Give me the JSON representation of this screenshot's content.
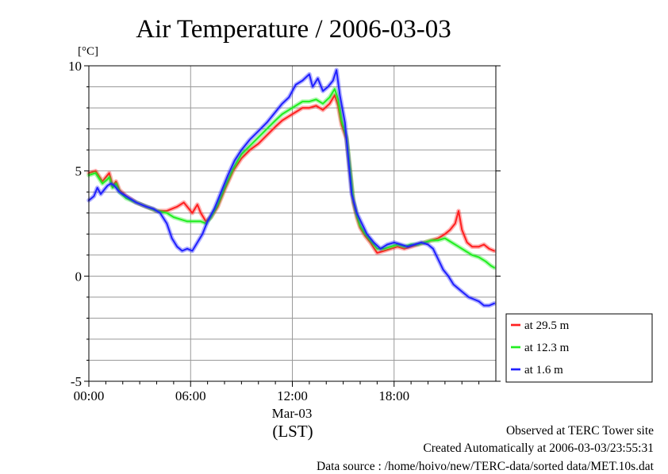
{
  "chart_data": {
    "type": "line",
    "title": "Air Temperature / 2006-03-03",
    "ylabel": "[°C]",
    "ylim": [
      -5,
      10
    ],
    "yticks": [
      -5,
      0,
      5,
      10
    ],
    "xlim": [
      0,
      24
    ],
    "xticks": [
      {
        "value": 0,
        "label": "00:00"
      },
      {
        "value": 6,
        "label": "06:00"
      },
      {
        "value": 12,
        "label": "12:00"
      },
      {
        "value": 18,
        "label": "18:00"
      }
    ],
    "date_label": "Mar-03",
    "xlabel": "(LST)",
    "grid": true,
    "legend_position": "right",
    "series": [
      {
        "name": "at 29.5 m",
        "color": "#ff2020",
        "points": [
          [
            0.0,
            4.9
          ],
          [
            0.4,
            5.0
          ],
          [
            0.8,
            4.5
          ],
          [
            1.1,
            4.8
          ],
          [
            1.2,
            4.9
          ],
          [
            1.4,
            4.3
          ],
          [
            1.6,
            4.5
          ],
          [
            1.8,
            4.1
          ],
          [
            2.2,
            3.8
          ],
          [
            2.8,
            3.5
          ],
          [
            3.4,
            3.3
          ],
          [
            4.0,
            3.1
          ],
          [
            4.6,
            3.1
          ],
          [
            5.2,
            3.3
          ],
          [
            5.6,
            3.5
          ],
          [
            5.9,
            3.2
          ],
          [
            6.1,
            3.0
          ],
          [
            6.4,
            3.4
          ],
          [
            6.6,
            3.0
          ],
          [
            6.9,
            2.6
          ],
          [
            7.2,
            2.8
          ],
          [
            7.6,
            3.3
          ],
          [
            8.0,
            4.1
          ],
          [
            8.5,
            5.0
          ],
          [
            9.0,
            5.6
          ],
          [
            9.5,
            6.0
          ],
          [
            10.0,
            6.3
          ],
          [
            10.5,
            6.7
          ],
          [
            11.0,
            7.1
          ],
          [
            11.4,
            7.4
          ],
          [
            11.8,
            7.6
          ],
          [
            12.2,
            7.8
          ],
          [
            12.6,
            8.0
          ],
          [
            13.0,
            8.0
          ],
          [
            13.4,
            8.1
          ],
          [
            13.8,
            7.9
          ],
          [
            14.2,
            8.2
          ],
          [
            14.5,
            8.6
          ],
          [
            14.7,
            8.1
          ],
          [
            14.9,
            7.2
          ],
          [
            15.2,
            6.5
          ],
          [
            15.4,
            5.0
          ],
          [
            15.6,
            3.5
          ],
          [
            15.8,
            2.8
          ],
          [
            16.0,
            2.3
          ],
          [
            16.3,
            1.9
          ],
          [
            16.6,
            1.6
          ],
          [
            17.0,
            1.1
          ],
          [
            17.4,
            1.2
          ],
          [
            17.8,
            1.3
          ],
          [
            18.2,
            1.4
          ],
          [
            18.6,
            1.3
          ],
          [
            19.0,
            1.4
          ],
          [
            19.4,
            1.5
          ],
          [
            19.8,
            1.6
          ],
          [
            20.2,
            1.7
          ],
          [
            20.6,
            1.8
          ],
          [
            21.0,
            2.0
          ],
          [
            21.3,
            2.2
          ],
          [
            21.6,
            2.5
          ],
          [
            21.8,
            3.1
          ],
          [
            22.0,
            2.2
          ],
          [
            22.3,
            1.6
          ],
          [
            22.6,
            1.4
          ],
          [
            23.0,
            1.4
          ],
          [
            23.3,
            1.5
          ],
          [
            23.6,
            1.3
          ],
          [
            23.9,
            1.2
          ]
        ]
      },
      {
        "name": "at 12.3 m",
        "color": "#20ee20",
        "points": [
          [
            0.0,
            4.8
          ],
          [
            0.4,
            4.9
          ],
          [
            0.8,
            4.4
          ],
          [
            1.1,
            4.6
          ],
          [
            1.2,
            4.7
          ],
          [
            1.4,
            4.2
          ],
          [
            1.6,
            4.4
          ],
          [
            1.8,
            4.0
          ],
          [
            2.2,
            3.7
          ],
          [
            2.8,
            3.5
          ],
          [
            3.4,
            3.3
          ],
          [
            4.0,
            3.1
          ],
          [
            4.6,
            3.0
          ],
          [
            5.0,
            2.8
          ],
          [
            5.4,
            2.7
          ],
          [
            5.8,
            2.6
          ],
          [
            6.2,
            2.6
          ],
          [
            6.6,
            2.6
          ],
          [
            6.9,
            2.5
          ],
          [
            7.2,
            2.8
          ],
          [
            7.6,
            3.4
          ],
          [
            8.0,
            4.2
          ],
          [
            8.5,
            5.1
          ],
          [
            9.0,
            5.8
          ],
          [
            9.5,
            6.2
          ],
          [
            10.0,
            6.6
          ],
          [
            10.5,
            7.0
          ],
          [
            11.0,
            7.4
          ],
          [
            11.4,
            7.7
          ],
          [
            11.8,
            7.9
          ],
          [
            12.2,
            8.1
          ],
          [
            12.6,
            8.3
          ],
          [
            13.0,
            8.3
          ],
          [
            13.4,
            8.4
          ],
          [
            13.8,
            8.2
          ],
          [
            14.2,
            8.5
          ],
          [
            14.5,
            8.9
          ],
          [
            14.7,
            8.4
          ],
          [
            14.9,
            7.4
          ],
          [
            15.2,
            6.6
          ],
          [
            15.4,
            5.1
          ],
          [
            15.6,
            3.6
          ],
          [
            15.8,
            2.9
          ],
          [
            16.0,
            2.4
          ],
          [
            16.3,
            2.0
          ],
          [
            16.6,
            1.7
          ],
          [
            17.0,
            1.3
          ],
          [
            17.4,
            1.3
          ],
          [
            17.8,
            1.4
          ],
          [
            18.2,
            1.5
          ],
          [
            18.6,
            1.4
          ],
          [
            19.0,
            1.5
          ],
          [
            19.4,
            1.5
          ],
          [
            19.8,
            1.6
          ],
          [
            20.2,
            1.7
          ],
          [
            20.6,
            1.7
          ],
          [
            21.0,
            1.8
          ],
          [
            21.4,
            1.6
          ],
          [
            21.8,
            1.4
          ],
          [
            22.2,
            1.2
          ],
          [
            22.6,
            1.0
          ],
          [
            23.0,
            0.9
          ],
          [
            23.4,
            0.7
          ],
          [
            23.7,
            0.5
          ],
          [
            23.9,
            0.4
          ]
        ]
      },
      {
        "name": "at 1.6 m",
        "color": "#2020ff",
        "points": [
          [
            0.0,
            3.6
          ],
          [
            0.3,
            3.8
          ],
          [
            0.5,
            4.2
          ],
          [
            0.7,
            3.9
          ],
          [
            0.9,
            4.1
          ],
          [
            1.1,
            4.3
          ],
          [
            1.3,
            4.4
          ],
          [
            1.5,
            4.3
          ],
          [
            1.8,
            4.0
          ],
          [
            2.2,
            3.8
          ],
          [
            2.8,
            3.5
          ],
          [
            3.4,
            3.3
          ],
          [
            3.8,
            3.2
          ],
          [
            4.2,
            3.0
          ],
          [
            4.6,
            2.5
          ],
          [
            4.9,
            1.8
          ],
          [
            5.2,
            1.4
          ],
          [
            5.5,
            1.2
          ],
          [
            5.8,
            1.3
          ],
          [
            6.1,
            1.2
          ],
          [
            6.4,
            1.6
          ],
          [
            6.7,
            2.0
          ],
          [
            7.0,
            2.6
          ],
          [
            7.4,
            3.2
          ],
          [
            7.8,
            4.0
          ],
          [
            8.2,
            4.8
          ],
          [
            8.6,
            5.5
          ],
          [
            9.0,
            6.0
          ],
          [
            9.5,
            6.5
          ],
          [
            10.0,
            6.9
          ],
          [
            10.5,
            7.3
          ],
          [
            11.0,
            7.8
          ],
          [
            11.4,
            8.2
          ],
          [
            11.8,
            8.5
          ],
          [
            12.2,
            9.1
          ],
          [
            12.6,
            9.3
          ],
          [
            13.0,
            9.6
          ],
          [
            13.2,
            9.0
          ],
          [
            13.5,
            9.4
          ],
          [
            13.8,
            8.8
          ],
          [
            14.1,
            9.0
          ],
          [
            14.4,
            9.3
          ],
          [
            14.6,
            9.8
          ],
          [
            14.8,
            8.6
          ],
          [
            15.1,
            7.3
          ],
          [
            15.3,
            5.6
          ],
          [
            15.5,
            3.9
          ],
          [
            15.8,
            3.0
          ],
          [
            16.1,
            2.5
          ],
          [
            16.4,
            2.0
          ],
          [
            16.8,
            1.6
          ],
          [
            17.2,
            1.3
          ],
          [
            17.6,
            1.5
          ],
          [
            18.0,
            1.6
          ],
          [
            18.4,
            1.5
          ],
          [
            18.8,
            1.4
          ],
          [
            19.2,
            1.5
          ],
          [
            19.6,
            1.6
          ],
          [
            20.0,
            1.5
          ],
          [
            20.3,
            1.3
          ],
          [
            20.6,
            0.8
          ],
          [
            20.9,
            0.3
          ],
          [
            21.2,
            0.0
          ],
          [
            21.5,
            -0.4
          ],
          [
            21.8,
            -0.6
          ],
          [
            22.1,
            -0.8
          ],
          [
            22.4,
            -1.0
          ],
          [
            22.7,
            -1.1
          ],
          [
            23.0,
            -1.2
          ],
          [
            23.3,
            -1.4
          ],
          [
            23.6,
            -1.4
          ],
          [
            23.9,
            -1.3
          ]
        ]
      }
    ]
  },
  "footer": {
    "site": "Observed at TERC Tower site",
    "created": "Created Automatically at 2006-03-03/23:55:31",
    "source": "Data source : /home/hoivo/new/TERC-data/sorted  data/MET.10s.dat"
  }
}
